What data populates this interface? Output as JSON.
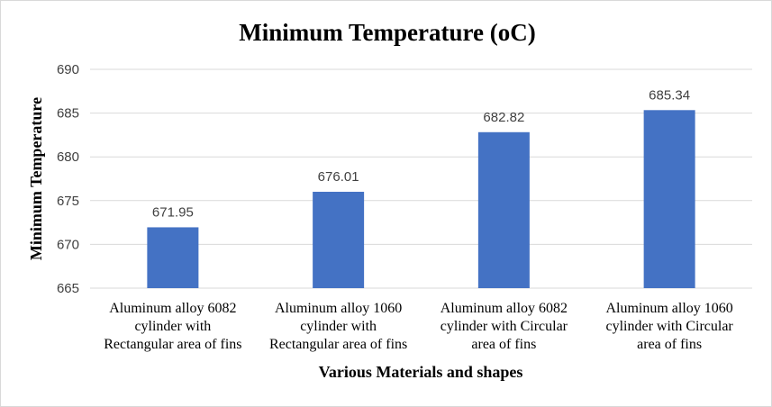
{
  "chart_data": {
    "type": "bar",
    "title": "Minimum Temperature  (oC)",
    "xlabel": "Various Materials and shapes",
    "ylabel": "Minimum  Temperature",
    "ylim": [
      665,
      690
    ],
    "yticks": [
      665,
      670,
      675,
      680,
      685,
      690
    ],
    "grid": true,
    "legend": "none",
    "bar_color": "#4472c4",
    "categories": [
      [
        "Aluminum alloy 6082",
        "cylinder with",
        "Rectangular area of fins"
      ],
      [
        "Aluminum alloy 1060",
        "cylinder with",
        "Rectangular area of fins"
      ],
      [
        "Aluminum alloy 6082",
        "cylinder with Circular",
        "area of fins"
      ],
      [
        "Aluminum alloy 1060",
        "cylinder with Circular",
        "area of fins"
      ]
    ],
    "values": [
      671.95,
      676.01,
      682.82,
      685.34
    ],
    "data_labels": [
      "671.95",
      "676.01",
      "682.82",
      "685.34"
    ]
  }
}
